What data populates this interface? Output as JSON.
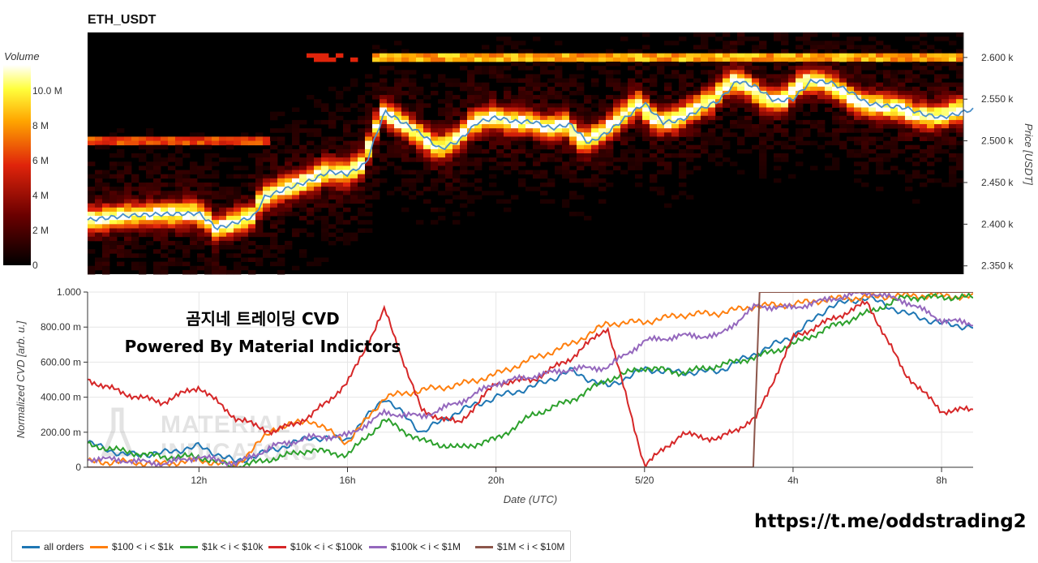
{
  "heatmap": {
    "title": "ETH_USDT",
    "colorbar_label": "Volume",
    "colorbar_ticks": [
      "10.0 M",
      "8 M",
      "6 M",
      "4 M",
      "2 M",
      "0"
    ],
    "right_axis_label": "Price [USDT]",
    "right_axis_ticks": [
      "2.600 k",
      "2.550 k",
      "2.500 k",
      "2.450 k",
      "2.400 k",
      "2.350 k"
    ]
  },
  "overlay": {
    "line1": "곰지네 트레이딩 CVD",
    "line2": "Powered By Material Indictors",
    "watermark": "MATERIAL INDICATORS"
  },
  "url": "https://t.me/oddstrading2",
  "colors": {
    "all_orders": "#1f77b4",
    "s100_1k": "#ff7f0e",
    "s1k_10k": "#2ca02c",
    "s10k_100k": "#d62728",
    "s100k_1m": "#9467bd",
    "s1m_10m": "#8c564b",
    "price_line": "#4a90c9"
  },
  "chart_data": [
    {
      "type": "heatmap",
      "title": "ETH_USDT",
      "ylabel": "Price [USDT]",
      "yticks": [
        2350,
        2400,
        2450,
        2500,
        2550,
        2600
      ],
      "ylim": [
        2340,
        2630
      ],
      "colorbar": {
        "label": "Volume",
        "range": [
          0,
          11500000
        ],
        "ticks": [
          "0",
          "2 M",
          "4 M",
          "6 M",
          "8 M",
          "10.0 M"
        ]
      },
      "price_series": {
        "name": "price",
        "points": [
          [
            "09:00",
            2405
          ],
          [
            "10:00",
            2410
          ],
          [
            "11:00",
            2412
          ],
          [
            "12:00",
            2413
          ],
          [
            "12:30",
            2395
          ],
          [
            "13:00",
            2402
          ],
          [
            "13:30",
            2410
          ],
          [
            "13:45",
            2432
          ],
          [
            "14:30",
            2445
          ],
          [
            "15:00",
            2452
          ],
          [
            "15:30",
            2463
          ],
          [
            "16:00",
            2460
          ],
          [
            "16:30",
            2473
          ],
          [
            "17:00",
            2535
          ],
          [
            "17:30",
            2522
          ],
          [
            "18:00",
            2508
          ],
          [
            "18:30",
            2490
          ],
          [
            "19:00",
            2500
          ],
          [
            "19:30",
            2522
          ],
          [
            "20:00",
            2528
          ],
          [
            "20:30",
            2523
          ],
          [
            "21:00",
            2523
          ],
          [
            "21:30",
            2515
          ],
          [
            "22:00",
            2520
          ],
          [
            "22:30",
            2497
          ],
          [
            "23:00",
            2510
          ],
          [
            "23:30",
            2528
          ],
          [
            "00:00",
            2545
          ],
          [
            "00:30",
            2522
          ],
          [
            "01:00",
            2525
          ],
          [
            "01:30",
            2538
          ],
          [
            "02:00",
            2548
          ],
          [
            "02:30",
            2572
          ],
          [
            "03:00",
            2565
          ],
          [
            "03:30",
            2548
          ],
          [
            "04:00",
            2550
          ],
          [
            "04:30",
            2572
          ],
          [
            "05:00",
            2570
          ],
          [
            "05:30",
            2560
          ],
          [
            "06:00",
            2545
          ],
          [
            "06:30",
            2542
          ],
          [
            "07:00",
            2540
          ],
          [
            "07:30",
            2532
          ],
          [
            "08:00",
            2528
          ],
          [
            "08:30",
            2533
          ],
          [
            "08:45",
            2537
          ]
        ]
      }
    },
    {
      "type": "line",
      "xlabel": "Date (UTC)",
      "ylabel": "Normalized CVD [arb. u.]",
      "xticks": [
        "12h",
        "16h",
        "20h",
        "5/20",
        "4h",
        "8h"
      ],
      "yticks": [
        "0",
        "200.00 m",
        "400.00 m",
        "600.00 m",
        "800.00 m",
        "1.000"
      ],
      "ylim": [
        0,
        1.0
      ],
      "x": [
        "09:00",
        "10:00",
        "11:00",
        "12:00",
        "13:00",
        "14:00",
        "15:00",
        "16:00",
        "17:00",
        "18:00",
        "19:00",
        "20:00",
        "21:00",
        "22:00",
        "23:00",
        "00:00",
        "01:00",
        "02:00",
        "03:00",
        "04:00",
        "05:00",
        "06:00",
        "07:00",
        "08:00",
        "08:50"
      ],
      "series": [
        {
          "name": "all orders",
          "values": [
            0.14,
            0.07,
            0.08,
            0.12,
            0.03,
            0.1,
            0.17,
            0.16,
            0.4,
            0.2,
            0.32,
            0.4,
            0.46,
            0.55,
            0.46,
            0.56,
            0.54,
            0.55,
            0.65,
            0.75,
            0.92,
            0.97,
            0.88,
            0.82,
            0.8
          ]
        },
        {
          "name": "$100 < i < $1k",
          "values": [
            0.03,
            0.03,
            0.02,
            0.04,
            0.01,
            0.22,
            0.27,
            0.14,
            0.4,
            0.44,
            0.47,
            0.53,
            0.62,
            0.7,
            0.82,
            0.83,
            0.87,
            0.88,
            0.92,
            0.93,
            0.96,
            0.97,
            0.98,
            0.98,
            0.97
          ]
        },
        {
          "name": "$1k < i < $10k",
          "values": [
            0.13,
            0.09,
            0.06,
            0.06,
            0.0,
            0.05,
            0.1,
            0.07,
            0.27,
            0.15,
            0.11,
            0.16,
            0.3,
            0.38,
            0.5,
            0.57,
            0.54,
            0.58,
            0.63,
            0.7,
            0.8,
            0.88,
            0.97,
            0.97,
            0.97
          ]
        },
        {
          "name": "$10k < i < $100k",
          "values": [
            0.5,
            0.42,
            0.37,
            0.46,
            0.28,
            0.2,
            0.29,
            0.48,
            0.9,
            0.32,
            0.25,
            0.48,
            0.5,
            0.62,
            0.8,
            0.01,
            0.19,
            0.16,
            0.28,
            0.74,
            0.84,
            0.94,
            0.54,
            0.32,
            0.33
          ]
        },
        {
          "name": "$100k < i < $1M",
          "values": [
            0.05,
            0.04,
            0.02,
            0.06,
            0.02,
            0.12,
            0.17,
            0.18,
            0.31,
            0.29,
            0.37,
            0.48,
            0.52,
            0.56,
            0.57,
            0.72,
            0.75,
            0.75,
            0.92,
            0.91,
            0.96,
            1.0,
            0.95,
            0.84,
            0.82
          ]
        },
        {
          "name": "$1M < i < $10M",
          "values": [
            0,
            0,
            0,
            0,
            0,
            0,
            0,
            0,
            0,
            0,
            0,
            0,
            0,
            0,
            0,
            0,
            0,
            0,
            1.0,
            1.0,
            1.0,
            1.0,
            1.0,
            1.0,
            1.0
          ]
        }
      ],
      "legend_position": "bottom"
    }
  ]
}
